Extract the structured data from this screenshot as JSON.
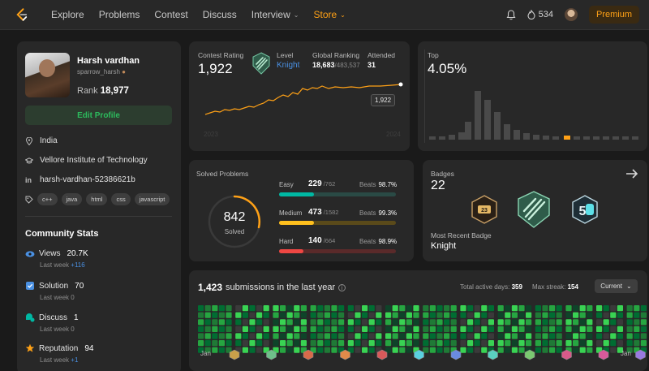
{
  "nav": {
    "items": [
      "Explore",
      "Problems",
      "Contest",
      "Discuss",
      "Interview",
      "Store"
    ],
    "streak_count": "534",
    "premium_label": "Premium"
  },
  "profile": {
    "name": "Harsh vardhan",
    "handle": "sparrow_harsh",
    "rank_label": "Rank",
    "rank_value": "18,977",
    "edit_label": "Edit Profile",
    "country": "India",
    "school": "Vellore Institute of Technology",
    "linkedin": "harsh-vardhan-52386621b",
    "tags": [
      "c++",
      "java",
      "html",
      "css",
      "javascript"
    ]
  },
  "community": {
    "title": "Community Stats",
    "stats": [
      {
        "label": "Views",
        "value": "20.7K",
        "week_label": "Last week",
        "week_value": "+116",
        "icon": "eye-icon",
        "color": "#2cbb5d"
      },
      {
        "label": "Solution",
        "value": "70",
        "week_label": "Last week",
        "week_value": "0",
        "icon": "solution-icon",
        "color": "#8a8a8a"
      },
      {
        "label": "Discuss",
        "value": "1",
        "week_label": "Last week",
        "week_value": "0",
        "icon": "discuss-icon",
        "color": "#8a8a8a"
      },
      {
        "label": "Reputation",
        "value": "94",
        "week_label": "Last week",
        "week_value": "+1",
        "icon": "star-icon",
        "color": "#4a90e2"
      }
    ]
  },
  "contest": {
    "rating_label": "Contest Rating",
    "rating_value": "1,922",
    "level_label": "Level",
    "level_value": "Knight",
    "global_label": "Global Ranking",
    "global_value": "18,683",
    "global_total": "/483,537",
    "attended_label": "Attended",
    "attended_value": "31",
    "tooltip": "1,922",
    "x_start": "2023",
    "x_end": "2024"
  },
  "top": {
    "label": "Top",
    "value": "4.05%"
  },
  "solved": {
    "title": "Solved Problems",
    "total": "842",
    "total_label": "Solved",
    "rows": [
      {
        "label": "Easy",
        "solved": "229",
        "total": "/762",
        "beats_label": "Beats",
        "beats": "98.7%",
        "fraction": 0.3,
        "color": "#00b8a3",
        "track": "#2a4a45"
      },
      {
        "label": "Medium",
        "solved": "473",
        "total": "/1582",
        "beats_label": "Beats",
        "beats": "99.3%",
        "fraction": 0.3,
        "color": "#ffc01e",
        "track": "#5a4a1a"
      },
      {
        "label": "Hard",
        "solved": "140",
        "total": "/664",
        "beats_label": "Beats",
        "beats": "98.9%",
        "fraction": 0.21,
        "color": "#ef4743",
        "track": "#5a2a2a"
      }
    ]
  },
  "badges": {
    "title": "Badges",
    "count": "22",
    "recent_label": "Most Recent Badge",
    "recent_value": "Knight"
  },
  "submissions": {
    "count": "1,423",
    "text": "submissions in the last year",
    "active_label": "Total active days:",
    "active_value": "359",
    "streak_label": "Max streak:",
    "streak_value": "154",
    "select_value": "Current",
    "month_start": "Jan",
    "month_end": "Jan"
  },
  "colors": {
    "accent": "#ffa116",
    "green": "#2cbb5d",
    "card": "#282828"
  }
}
